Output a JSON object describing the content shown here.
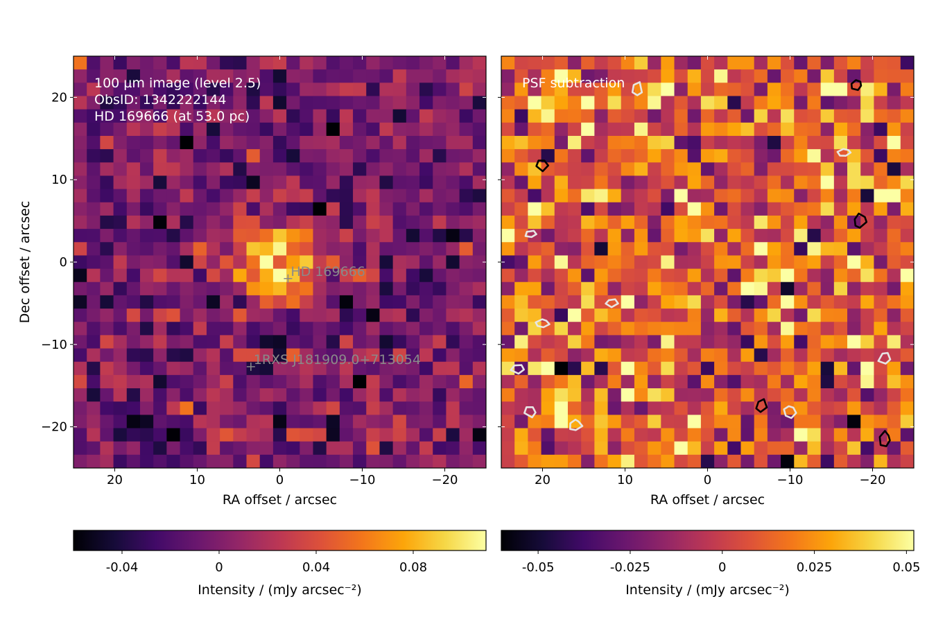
{
  "chart_data": [
    {
      "type": "heatmap",
      "panel": "left",
      "xlabel": "RA offset / arcsec",
      "ylabel": "Dec offset / arcsec",
      "xlim": [
        25,
        -25
      ],
      "ylim": [
        -25,
        25
      ],
      "xticks": [
        20,
        10,
        0,
        -10,
        -20
      ],
      "xtick_labels": [
        "20",
        "10",
        "0",
        "−10",
        "−20"
      ],
      "yticks": [
        20,
        10,
        0,
        -10,
        -20
      ],
      "ytick_labels": [
        "20",
        "10",
        "0",
        "−10",
        "−20"
      ],
      "annotation_lines": [
        "100 µm image (level 2.5)",
        "ObsID: 1342222144",
        "HD 169666 (at 53.0 pc)"
      ],
      "markers": [
        {
          "label": "HD 169666",
          "x": -1.0,
          "y": -2.0
        },
        {
          "label": "1RXS J181909.0+713054",
          "x": 3.5,
          "y": -12.7
        }
      ],
      "colormap": "inferno",
      "colorbar": {
        "label": "Intensity / (mJy arcsec⁻²)",
        "range": [
          -0.06,
          0.11
        ],
        "ticks": [
          -0.04,
          0,
          0.04,
          0.08
        ],
        "tick_labels": [
          "-0.04",
          "0",
          "0.04",
          "0.08"
        ]
      },
      "pixel_size_arcsec": 1.6,
      "source_peak": {
        "x": 0.0,
        "y": 0.0,
        "value": 0.11
      },
      "noise_sigma": 0.022
    },
    {
      "type": "heatmap",
      "panel": "right",
      "xlabel": "RA offset / arcsec",
      "xlim": [
        25,
        -25
      ],
      "ylim": [
        -25,
        25
      ],
      "xticks": [
        20,
        10,
        0,
        -10,
        -20
      ],
      "xtick_labels": [
        "20",
        "10",
        "0",
        "−10",
        "−20"
      ],
      "yticks": [
        20,
        10,
        0,
        -10,
        -20
      ],
      "annotation_lines": [
        "PSF subtraction"
      ],
      "colormap": "inferno",
      "colorbar": {
        "label": "Intensity / (mJy arcsec⁻²)",
        "range": [
          -0.06,
          0.052
        ],
        "ticks": [
          -0.05,
          -0.025,
          0,
          0.025,
          0.05
        ],
        "tick_labels": [
          "-0.05",
          "-0.025",
          "0",
          "0.025",
          "0.05"
        ]
      },
      "pixel_size_arcsec": 1.6,
      "noise_sigma": 0.022,
      "contours_positive": [
        [
          20,
          11.8
        ],
        [
          -18,
          21.5
        ],
        [
          -18.5,
          5
        ],
        [
          -6.5,
          -17.5
        ],
        [
          -21.5,
          -21.5
        ]
      ],
      "contours_negative": [
        [
          8.5,
          21
        ],
        [
          -16.5,
          13.3
        ],
        [
          21.5,
          3.4
        ],
        [
          11.5,
          -5
        ],
        [
          20,
          -7.5
        ],
        [
          23,
          -13
        ],
        [
          21.5,
          -18.2
        ],
        [
          16,
          -19.8
        ],
        [
          -10,
          -18.2
        ],
        [
          -21.5,
          -11.7
        ]
      ]
    }
  ]
}
